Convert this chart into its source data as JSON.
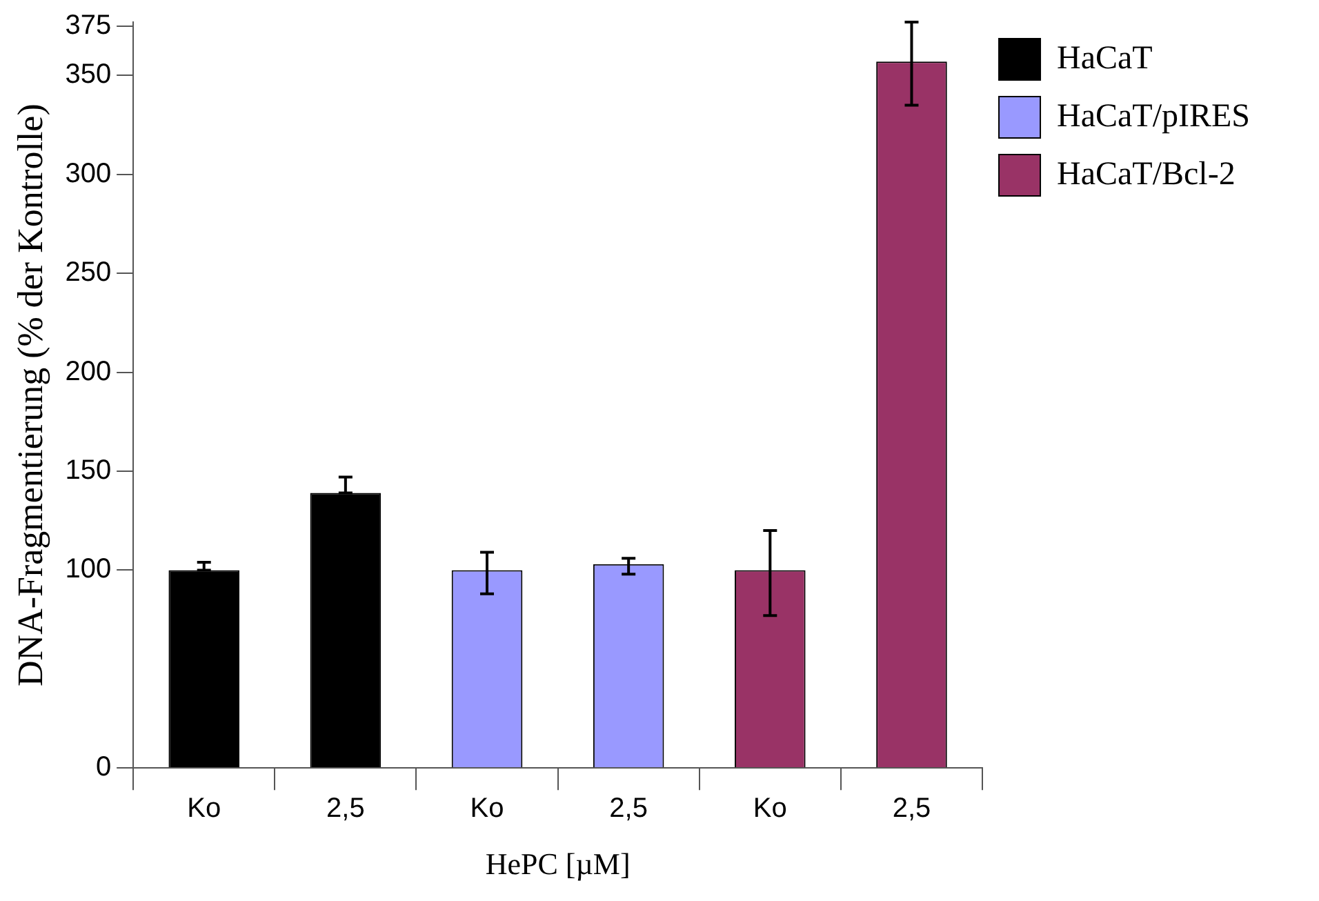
{
  "chart_data": {
    "type": "bar",
    "xlabel": "HePC [µM]",
    "ylabel": "DNA-Fragmentierung (% der Kontrolle)",
    "categories": [
      "Ko",
      "2,5",
      "Ko",
      "2,5",
      "Ko",
      "2,5"
    ],
    "series": [
      {
        "name": "HaCaT",
        "color": "#000000",
        "values": [
          100,
          139,
          null,
          null,
          null,
          null
        ],
        "errors": [
          [
            100,
            104
          ],
          [
            139,
            147
          ],
          null,
          null,
          null,
          null
        ]
      },
      {
        "name": "HaCaT/pIRES",
        "color": "#9999ff",
        "values": [
          null,
          null,
          100,
          103,
          null,
          null
        ],
        "errors": [
          null,
          null,
          [
            88,
            109
          ],
          [
            98,
            106
          ],
          null,
          null
        ]
      },
      {
        "name": "HaCaT/Bcl-2",
        "color": "#993366",
        "values": [
          null,
          null,
          null,
          null,
          100,
          357
        ],
        "errors": [
          null,
          null,
          null,
          null,
          [
            77,
            120
          ],
          [
            335,
            377
          ]
        ]
      }
    ],
    "ylim": [
      0,
      377
    ],
    "yticks": [
      0,
      100,
      150,
      200,
      250,
      300,
      350,
      375
    ],
    "grid": false,
    "legend": "top right"
  }
}
